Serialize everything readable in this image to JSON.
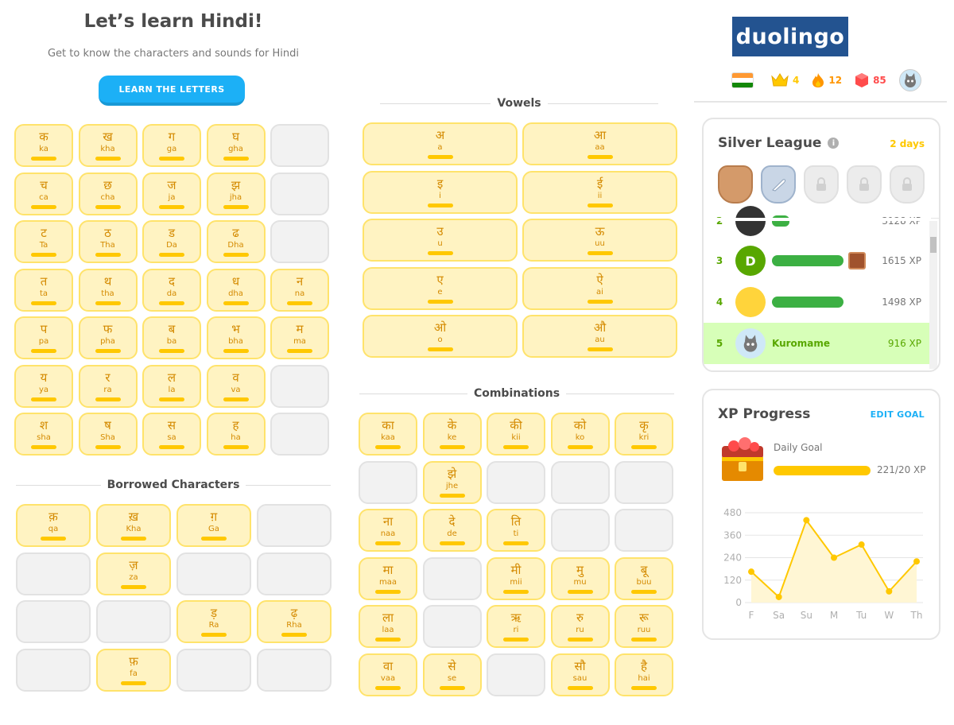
{
  "header": {
    "title": "Let’s learn Hindi!",
    "subtitle": "Get to know the characters and sounds for Hindi",
    "learn_button": "LEARN THE LETTERS"
  },
  "consonants": [
    [
      {
        "ch": "क",
        "tr": "ka"
      },
      {
        "ch": "ख",
        "tr": "kha"
      },
      {
        "ch": "ग",
        "tr": "ga"
      },
      {
        "ch": "घ",
        "tr": "gha"
      },
      null
    ],
    [
      {
        "ch": "च",
        "tr": "ca"
      },
      {
        "ch": "छ",
        "tr": "cha"
      },
      {
        "ch": "ज",
        "tr": "ja"
      },
      {
        "ch": "झ",
        "tr": "jha"
      },
      null
    ],
    [
      {
        "ch": "ट",
        "tr": "Ta"
      },
      {
        "ch": "ठ",
        "tr": "Tha"
      },
      {
        "ch": "ड",
        "tr": "Da"
      },
      {
        "ch": "ढ",
        "tr": "Dha"
      },
      null
    ],
    [
      {
        "ch": "त",
        "tr": "ta"
      },
      {
        "ch": "थ",
        "tr": "tha"
      },
      {
        "ch": "द",
        "tr": "da"
      },
      {
        "ch": "ध",
        "tr": "dha"
      },
      {
        "ch": "न",
        "tr": "na"
      }
    ],
    [
      {
        "ch": "प",
        "tr": "pa"
      },
      {
        "ch": "फ",
        "tr": "pha"
      },
      {
        "ch": "ब",
        "tr": "ba"
      },
      {
        "ch": "भ",
        "tr": "bha"
      },
      {
        "ch": "म",
        "tr": "ma"
      }
    ],
    [
      {
        "ch": "य",
        "tr": "ya"
      },
      {
        "ch": "र",
        "tr": "ra"
      },
      {
        "ch": "ल",
        "tr": "la"
      },
      {
        "ch": "व",
        "tr": "va"
      },
      null
    ],
    [
      {
        "ch": "श",
        "tr": "sha"
      },
      {
        "ch": "ष",
        "tr": "Sha"
      },
      {
        "ch": "स",
        "tr": "sa"
      },
      {
        "ch": "ह",
        "tr": "ha"
      },
      null
    ]
  ],
  "borrowed": {
    "heading": "Borrowed Characters",
    "rows": [
      [
        {
          "ch": "क़",
          "tr": "qa"
        },
        {
          "ch": "ख़",
          "tr": "Kha"
        },
        {
          "ch": "ग़",
          "tr": "Ga"
        },
        null
      ],
      [
        null,
        {
          "ch": "ज़",
          "tr": "za"
        },
        null,
        null
      ],
      [
        null,
        null,
        {
          "ch": "ड़",
          "tr": "Ra"
        },
        {
          "ch": "ढ़",
          "tr": "Rha"
        }
      ],
      [
        null,
        {
          "ch": "फ़",
          "tr": "fa"
        },
        null,
        null
      ]
    ]
  },
  "vowels": {
    "heading": "Vowels",
    "rows": [
      [
        {
          "ch": "अ",
          "tr": "a"
        },
        {
          "ch": "आ",
          "tr": "aa"
        }
      ],
      [
        {
          "ch": "इ",
          "tr": "i"
        },
        {
          "ch": "ई",
          "tr": "ii"
        }
      ],
      [
        {
          "ch": "उ",
          "tr": "u"
        },
        {
          "ch": "ऊ",
          "tr": "uu"
        }
      ],
      [
        {
          "ch": "ए",
          "tr": "e"
        },
        {
          "ch": "ऐ",
          "tr": "ai"
        }
      ],
      [
        {
          "ch": "ओ",
          "tr": "o"
        },
        {
          "ch": "औ",
          "tr": "au"
        }
      ]
    ]
  },
  "combinations": {
    "heading": "Combinations",
    "rows": [
      [
        {
          "ch": "का",
          "tr": "kaa"
        },
        {
          "ch": "के",
          "tr": "ke"
        },
        {
          "ch": "की",
          "tr": "kii"
        },
        {
          "ch": "को",
          "tr": "ko"
        },
        {
          "ch": "कृ",
          "tr": "kri"
        }
      ],
      [
        null,
        {
          "ch": "झे",
          "tr": "jhe"
        },
        null,
        null,
        null
      ],
      [
        {
          "ch": "ना",
          "tr": "naa"
        },
        {
          "ch": "दे",
          "tr": "de"
        },
        {
          "ch": "ति",
          "tr": "ti"
        },
        null,
        null
      ],
      [
        {
          "ch": "मा",
          "tr": "maa"
        },
        null,
        {
          "ch": "मी",
          "tr": "mii"
        },
        {
          "ch": "मु",
          "tr": "mu"
        },
        {
          "ch": "बू",
          "tr": "buu"
        }
      ],
      [
        {
          "ch": "ला",
          "tr": "laa"
        },
        null,
        {
          "ch": "ऋ",
          "tr": "ri"
        },
        {
          "ch": "रु",
          "tr": "ru"
        },
        {
          "ch": "रू",
          "tr": "ruu"
        }
      ],
      [
        {
          "ch": "वा",
          "tr": "vaa"
        },
        {
          "ch": "से",
          "tr": "se"
        },
        null,
        {
          "ch": "सौ",
          "tr": "sau"
        },
        {
          "ch": "है",
          "tr": "hai"
        }
      ]
    ]
  },
  "sidebar": {
    "logo": "duolingo",
    "stats": {
      "crowns": "4",
      "streak": "12",
      "gems": "85"
    },
    "league": {
      "title": "Silver League",
      "info": "i",
      "days_left": "2 days",
      "partial_row": {
        "rank": "2",
        "xp": "3128 XP"
      },
      "rows": [
        {
          "rank": "3",
          "avatar_letter": "D",
          "name": "",
          "xp": "1615 XP"
        },
        {
          "rank": "4",
          "avatar_letter": "",
          "name": "",
          "xp": "1498 XP"
        },
        {
          "rank": "5",
          "avatar_letter": "",
          "name": "Kuromame",
          "xp": "916 XP"
        }
      ]
    },
    "xp_progress": {
      "title": "XP Progress",
      "edit_goal": "EDIT GOAL",
      "daily_goal_label": "Daily Goal",
      "daily_goal_value": "221/20 XP",
      "daily_goal_fraction": 1.0
    }
  },
  "chart_data": {
    "type": "line",
    "categories": [
      "F",
      "Sa",
      "Su",
      "M",
      "Tu",
      "W",
      "Th"
    ],
    "values": [
      165,
      30,
      440,
      240,
      310,
      60,
      220
    ],
    "yticks": [
      0,
      120,
      240,
      360,
      480
    ],
    "ylim": [
      0,
      480
    ],
    "title": "",
    "xlabel": "",
    "ylabel": "",
    "colors": {
      "line": "#ffc800",
      "fill": "#fff6d4",
      "grid": "#e5e5e5",
      "tick": "#afafaf"
    }
  },
  "colors": {
    "tile_bg": "#fff3c2",
    "tile_border": "#ffe36b",
    "tile_text": "#d48a00",
    "bar": "#ffc800",
    "button": "#1cb0f6",
    "logo_bg": "#235390",
    "highlight_row": "#d7ffb8",
    "rank_green": "#58a700"
  }
}
